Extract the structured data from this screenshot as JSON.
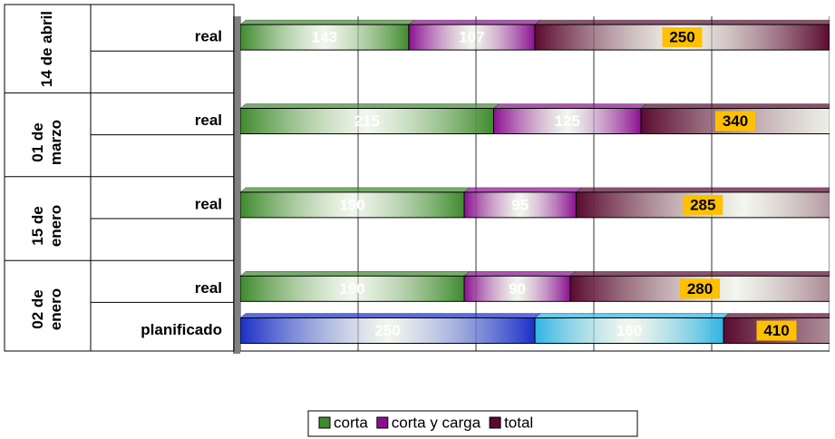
{
  "chart_data": {
    "type": "stacked_barh",
    "groups": [
      "14 de abril",
      "01 de marzo",
      "15 de enero",
      "02 de enero"
    ],
    "categories": [
      "real",
      null,
      "real",
      null,
      "real",
      null,
      "real",
      "planificado"
    ],
    "series": [
      {
        "name": "corta",
        "color": "#3f8a2e",
        "colors": [
          null,
          null,
          null,
          null,
          null,
          null,
          null,
          "#1a2fc8"
        ],
        "values": [
          143,
          null,
          215,
          null,
          190,
          null,
          190,
          250
        ]
      },
      {
        "name": "corta y carga",
        "color": "#8a1090",
        "colors": [
          null,
          null,
          null,
          null,
          null,
          null,
          null,
          "#2fb4e4"
        ],
        "values": [
          107,
          null,
          125,
          null,
          95,
          null,
          90,
          160
        ]
      },
      {
        "name": "total",
        "color": "#5a0a30",
        "values": [
          250,
          null,
          340,
          null,
          285,
          null,
          280,
          410
        ]
      }
    ],
    "xlim": [
      0,
      500
    ],
    "xticks": [
      0,
      100,
      200,
      300,
      400,
      500
    ],
    "grid": true
  }
}
